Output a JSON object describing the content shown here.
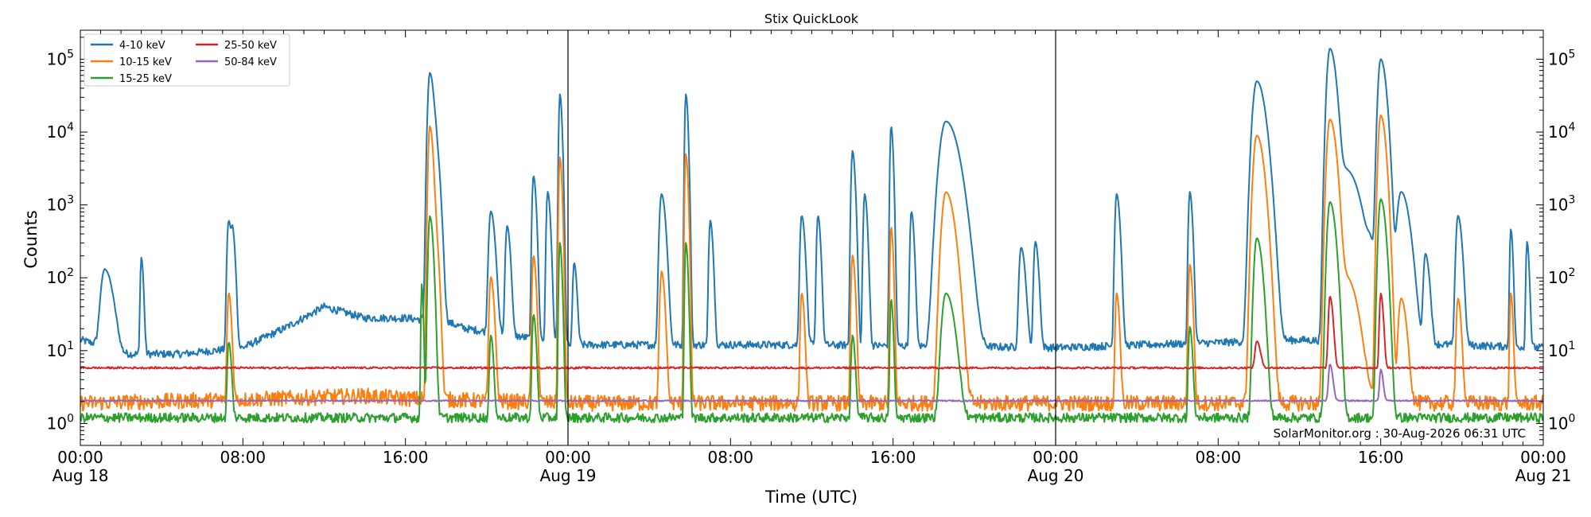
{
  "chart_data": {
    "type": "line",
    "title": "Stix QuickLook",
    "xlabel": "Time (UTC)",
    "ylabel": "Counts",
    "yscale": "log",
    "ylim": [
      0.5,
      250000
    ],
    "xlim_hours": [
      0,
      72
    ],
    "x_ticks": [
      {
        "hour": 0,
        "label": "00:00",
        "sublabel": "Aug 18"
      },
      {
        "hour": 8,
        "label": "08:00",
        "sublabel": ""
      },
      {
        "hour": 16,
        "label": "16:00",
        "sublabel": ""
      },
      {
        "hour": 24,
        "label": "00:00",
        "sublabel": "Aug 19"
      },
      {
        "hour": 32,
        "label": "08:00",
        "sublabel": ""
      },
      {
        "hour": 40,
        "label": "16:00",
        "sublabel": ""
      },
      {
        "hour": 48,
        "label": "00:00",
        "sublabel": "Aug 20"
      },
      {
        "hour": 56,
        "label": "08:00",
        "sublabel": ""
      },
      {
        "hour": 64,
        "label": "16:00",
        "sublabel": ""
      },
      {
        "hour": 72,
        "label": "00:00",
        "sublabel": "Aug 21"
      }
    ],
    "y_ticks": [
      {
        "value": 1,
        "base": "10",
        "exp": "0"
      },
      {
        "value": 10,
        "base": "10",
        "exp": "1"
      },
      {
        "value": 100,
        "base": "10",
        "exp": "2"
      },
      {
        "value": 1000,
        "base": "10",
        "exp": "3"
      },
      {
        "value": 10000,
        "base": "10",
        "exp": "4"
      },
      {
        "value": 100000,
        "base": "10",
        "exp": "5"
      }
    ],
    "day_boundaries_hours": [
      24,
      48
    ],
    "annotation": "SolarMonitor.org : 30-Aug-2026 06:31 UTC",
    "legend_placement": "top-left",
    "grid": false,
    "series": [
      {
        "name": "4-10 keV",
        "color": "#1f77b4",
        "baseline": 12,
        "noise": 0.12,
        "background": [
          [
            0,
            14
          ],
          [
            1,
            12
          ],
          [
            2,
            9
          ],
          [
            5,
            9
          ],
          [
            8,
            11
          ],
          [
            10,
            20
          ],
          [
            12,
            40
          ],
          [
            14,
            28
          ],
          [
            16,
            28
          ],
          [
            18,
            25
          ],
          [
            19,
            20
          ],
          [
            22,
            15
          ],
          [
            24,
            12
          ],
          [
            36,
            12
          ],
          [
            48,
            11
          ],
          [
            60,
            14
          ],
          [
            72,
            11
          ]
        ],
        "peaks": [
          [
            1.2,
            120,
            0.3
          ],
          [
            3.0,
            180,
            0.08
          ],
          [
            7.3,
            600,
            0.12
          ],
          [
            7.5,
            350,
            0.1
          ],
          [
            17.2,
            65000,
            0.15
          ],
          [
            17.5,
            5000,
            0.15
          ],
          [
            20.2,
            800,
            0.15
          ],
          [
            21.0,
            500,
            0.12
          ],
          [
            22.3,
            2500,
            0.1
          ],
          [
            23.0,
            1500,
            0.1
          ],
          [
            23.6,
            33000,
            0.08
          ],
          [
            24.3,
            150,
            0.1
          ],
          [
            28.6,
            1400,
            0.15
          ],
          [
            29.8,
            33000,
            0.08
          ],
          [
            31.0,
            600,
            0.1
          ],
          [
            35.5,
            700,
            0.12
          ],
          [
            36.3,
            700,
            0.1
          ],
          [
            38.0,
            5500,
            0.1
          ],
          [
            38.6,
            1400,
            0.1
          ],
          [
            39.9,
            12000,
            0.08
          ],
          [
            40.9,
            800,
            0.1
          ],
          [
            42.6,
            14000,
            0.45
          ],
          [
            46.3,
            250,
            0.15
          ],
          [
            47.0,
            300,
            0.12
          ],
          [
            51.0,
            1400,
            0.12
          ],
          [
            54.6,
            1500,
            0.1
          ],
          [
            57.9,
            50000,
            0.3
          ],
          [
            61.5,
            140000,
            0.22
          ],
          [
            62.3,
            3000,
            0.5
          ],
          [
            63.5,
            200,
            0.3
          ],
          [
            64.0,
            100000,
            0.2
          ],
          [
            65.0,
            1500,
            0.3
          ],
          [
            66.2,
            200,
            0.15
          ],
          [
            67.8,
            700,
            0.15
          ],
          [
            70.4,
            450,
            0.08
          ],
          [
            71.2,
            300,
            0.08
          ]
        ]
      },
      {
        "name": "10-15 keV",
        "color": "#ff7f0e",
        "baseline": 1.9,
        "noise": 0.25,
        "background": [
          [
            0,
            1.9
          ],
          [
            10,
            2.2
          ],
          [
            14,
            2.4
          ],
          [
            16,
            2.2
          ],
          [
            24,
            1.9
          ],
          [
            48,
            1.9
          ],
          [
            72,
            1.9
          ]
        ],
        "peaks": [
          [
            7.3,
            60,
            0.1
          ],
          [
            17.2,
            12000,
            0.12
          ],
          [
            17.5,
            300,
            0.12
          ],
          [
            20.2,
            100,
            0.12
          ],
          [
            22.3,
            200,
            0.1
          ],
          [
            23.6,
            4500,
            0.08
          ],
          [
            28.6,
            120,
            0.12
          ],
          [
            29.8,
            5000,
            0.08
          ],
          [
            35.5,
            60,
            0.1
          ],
          [
            38.0,
            200,
            0.1
          ],
          [
            39.9,
            500,
            0.08
          ],
          [
            42.6,
            1500,
            0.3
          ],
          [
            51.0,
            60,
            0.1
          ],
          [
            54.6,
            150,
            0.1
          ],
          [
            57.9,
            9000,
            0.25
          ],
          [
            61.5,
            15000,
            0.22
          ],
          [
            62.3,
            100,
            0.4
          ],
          [
            64.0,
            17000,
            0.18
          ],
          [
            65.0,
            50,
            0.2
          ],
          [
            67.8,
            50,
            0.12
          ],
          [
            70.4,
            60,
            0.08
          ]
        ]
      },
      {
        "name": "15-25 keV",
        "color": "#2ca02c",
        "baseline": 1.2,
        "noise": 0.15,
        "background": [
          [
            0,
            1.2
          ],
          [
            72,
            1.2
          ]
        ],
        "peaks": [
          [
            7.3,
            12,
            0.1
          ],
          [
            16.8,
            80,
            0.06
          ],
          [
            17.2,
            700,
            0.12
          ],
          [
            20.2,
            15,
            0.1
          ],
          [
            22.3,
            30,
            0.1
          ],
          [
            23.6,
            300,
            0.08
          ],
          [
            29.8,
            300,
            0.08
          ],
          [
            38.0,
            15,
            0.1
          ],
          [
            39.9,
            50,
            0.08
          ],
          [
            42.6,
            60,
            0.3
          ],
          [
            54.6,
            20,
            0.1
          ],
          [
            57.9,
            350,
            0.2
          ],
          [
            61.5,
            1100,
            0.2
          ],
          [
            64.0,
            1200,
            0.18
          ]
        ]
      },
      {
        "name": "25-50 keV",
        "color": "#d62728",
        "baseline": 5.8,
        "noise": 0.03,
        "background": [
          [
            0,
            5.8
          ],
          [
            72,
            5.8
          ]
        ],
        "peaks": [
          [
            57.9,
            7.8,
            0.15
          ],
          [
            61.5,
            50,
            0.12
          ],
          [
            64.0,
            55,
            0.1
          ]
        ]
      },
      {
        "name": "50-84 keV",
        "color": "#9467bd",
        "baseline": 2.05,
        "noise": 0.02,
        "background": [
          [
            0,
            2.05
          ],
          [
            72,
            2.05
          ]
        ],
        "peaks": [
          [
            61.5,
            4.5,
            0.12
          ],
          [
            64.0,
            3.5,
            0.1
          ]
        ]
      }
    ]
  }
}
